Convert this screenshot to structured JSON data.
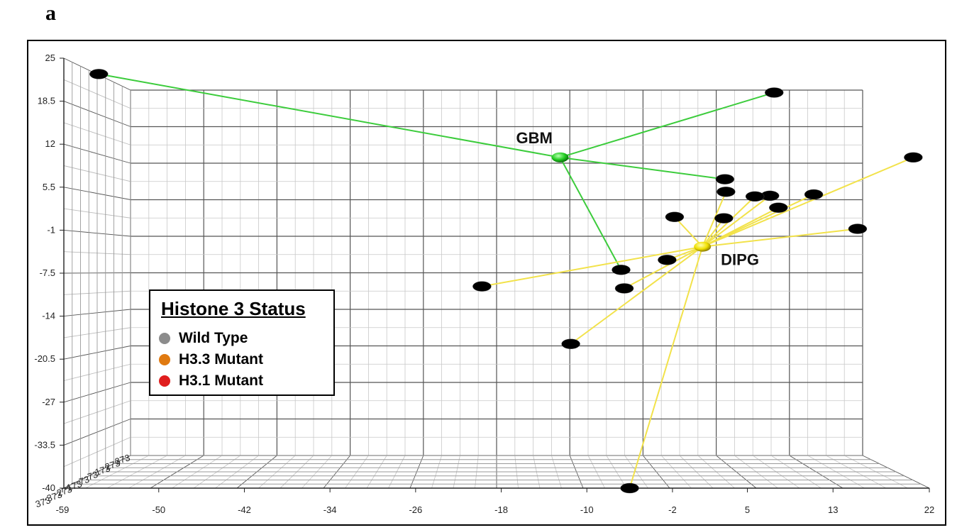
{
  "panel_label": "a",
  "chart_data": {
    "type": "scatter",
    "title": "",
    "xlabel": "",
    "ylabel": "",
    "xlim": [
      -59,
      22
    ],
    "ylim": [
      -40,
      25
    ],
    "x_ticks": [
      "-59",
      "-50",
      "-42",
      "-34",
      "-26",
      "-18",
      "-10",
      "-2",
      "5",
      "13",
      "22"
    ],
    "y_ticks": [
      "25",
      "18.5",
      "12",
      "5.5",
      "-1",
      "-7.5",
      "-14",
      "-20.5",
      "-27",
      "-33.5",
      "-40"
    ],
    "depth_tick_fragments": [
      "373",
      "-373",
      "-273",
      "-173",
      "-73",
      "73",
      "173",
      "273",
      "373"
    ],
    "legend": {
      "title": "Histone 3 Status",
      "placement": "lower-left",
      "entries": [
        {
          "label": "Wild Type",
          "color": "#8c8c8c"
        },
        {
          "label": "H3.3 Mutant",
          "color": "#e07a10"
        },
        {
          "label": "H3.1 Mutant",
          "color": "#e01e1e"
        }
      ]
    },
    "colors": {
      "GBM": "#22cc22",
      "DIPG": "#f0e000",
      "gbm_link": "#3ccc3c",
      "dipg_link": "#f2e24a",
      "Wild Type": "#8c8c8c",
      "H3.3 Mutant": "#e07a10",
      "H3.1 Mutant": "#e01e1e"
    },
    "centroids": [
      {
        "name": "GBM",
        "x": -12.5,
        "y": 10
      },
      {
        "name": "DIPG",
        "x": 0.8,
        "y": -3.5
      }
    ],
    "points": [
      {
        "x": -55.6,
        "y": 22.6,
        "status": "H3.3 Mutant",
        "cluster": "GBM"
      },
      {
        "x": 7.5,
        "y": 19.8,
        "status": "Wild Type",
        "cluster": "GBM"
      },
      {
        "x": 2.9,
        "y": 6.7,
        "status": "H3.3 Mutant",
        "cluster": "GBM"
      },
      {
        "x": -6.8,
        "y": -7.0,
        "status": "Wild Type",
        "cluster": "GBM"
      },
      {
        "x": 20.5,
        "y": 10.0,
        "status": "H3.3 Mutant",
        "cluster": "DIPG"
      },
      {
        "x": 15.3,
        "y": -0.8,
        "status": "Wild Type",
        "cluster": "DIPG"
      },
      {
        "x": 11.2,
        "y": 4.4,
        "status": "H3.3 Mutant",
        "cluster": "DIPG"
      },
      {
        "x": 7.1,
        "y": 4.2,
        "status": "H3.3 Mutant",
        "cluster": "DIPG"
      },
      {
        "x": 5.7,
        "y": 4.1,
        "status": "H3.1 Mutant",
        "cluster": "DIPG"
      },
      {
        "x": 7.9,
        "y": 2.4,
        "status": "H3.1 Mutant",
        "cluster": "DIPG"
      },
      {
        "x": 3.0,
        "y": 4.8,
        "status": "H3.3 Mutant",
        "cluster": "DIPG"
      },
      {
        "x": 2.8,
        "y": 0.8,
        "status": "H3.3 Mutant",
        "cluster": "DIPG"
      },
      {
        "x": -1.8,
        "y": 1.0,
        "status": "H3.3 Mutant",
        "cluster": "DIPG"
      },
      {
        "x": -2.5,
        "y": -5.5,
        "status": "H3.3 Mutant",
        "cluster": "DIPG"
      },
      {
        "x": -19.8,
        "y": -9.5,
        "status": "Wild Type",
        "cluster": "DIPG"
      },
      {
        "x": -6.5,
        "y": -9.8,
        "status": "H3.1 Mutant",
        "cluster": "DIPG"
      },
      {
        "x": -11.5,
        "y": -18.2,
        "status": "Wild Type",
        "cluster": "DIPG"
      },
      {
        "x": -6.0,
        "y": -40.0,
        "status": "H3.3 Mutant",
        "cluster": "DIPG"
      }
    ]
  }
}
